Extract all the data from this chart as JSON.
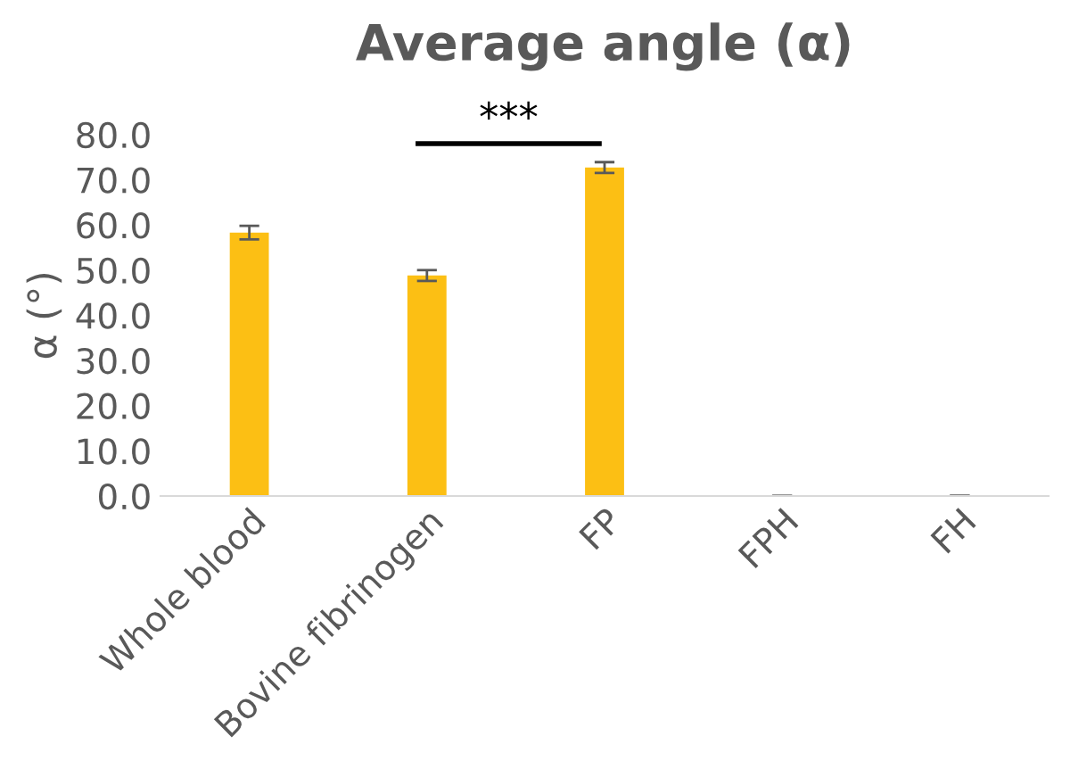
{
  "chart_data": {
    "type": "bar",
    "title": "Average angle (α)",
    "ylabel": "α (°)",
    "categories": [
      "Whole blood",
      "Bovine fibrinogen",
      "FP",
      "FPH",
      "FH"
    ],
    "values": [
      58.3,
      48.8,
      72.7,
      0,
      0
    ],
    "errors": [
      1.5,
      1.2,
      1.2,
      null,
      null
    ],
    "color": "#fcbf14",
    "ylim": [
      0,
      80
    ],
    "yticks": [
      {
        "value": 0,
        "label": "0.0"
      },
      {
        "value": 10,
        "label": "10.0"
      },
      {
        "value": 20,
        "label": "20.0"
      },
      {
        "value": 30,
        "label": "30.0"
      },
      {
        "value": 40,
        "label": "40.0"
      },
      {
        "value": 50,
        "label": "50.0"
      },
      {
        "value": 60,
        "label": "60.0"
      },
      {
        "value": 70,
        "label": "70.0"
      },
      {
        "value": 80,
        "label": "80.0"
      }
    ],
    "grid": false,
    "annotations": [
      "***"
    ]
  }
}
